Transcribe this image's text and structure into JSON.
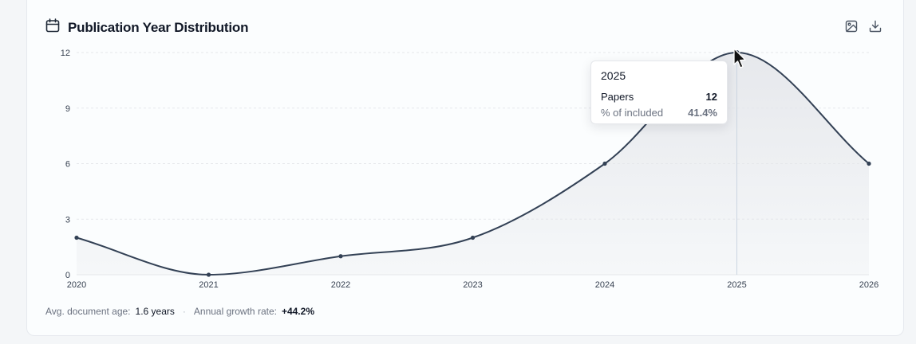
{
  "header": {
    "title": "Publication Year Distribution",
    "icon": "calendar-icon"
  },
  "actions": {
    "image_icon": "image-icon",
    "download_icon": "download-icon"
  },
  "chart_data": {
    "type": "area",
    "x": [
      "2020",
      "2021",
      "2022",
      "2023",
      "2024",
      "2025",
      "2026"
    ],
    "series": [
      {
        "values": [
          2,
          0,
          1,
          2,
          6,
          12,
          6
        ]
      }
    ],
    "title": "Publication Year Distribution",
    "xlabel": "",
    "ylabel": "",
    "ylim": [
      0,
      12
    ],
    "yticks": [
      "0",
      "3",
      "6",
      "9",
      "12"
    ],
    "grid": true,
    "legend": "none",
    "colors": {
      "line": "#334155",
      "fill": "#e5e7eb",
      "grid": "#e5e7eb",
      "hover_line": "#cbd5e1"
    },
    "hover_index": 5
  },
  "tooltip": {
    "title": "2025",
    "rows": [
      {
        "label": "Papers",
        "value": "12"
      },
      {
        "label": "% of included",
        "value": "41.4%"
      }
    ]
  },
  "footer": {
    "avg_age_label": "Avg. document age:",
    "avg_age_value": "1.6 years",
    "separator": "·",
    "growth_label": "Annual growth rate:",
    "growth_value": "+44.2%"
  }
}
